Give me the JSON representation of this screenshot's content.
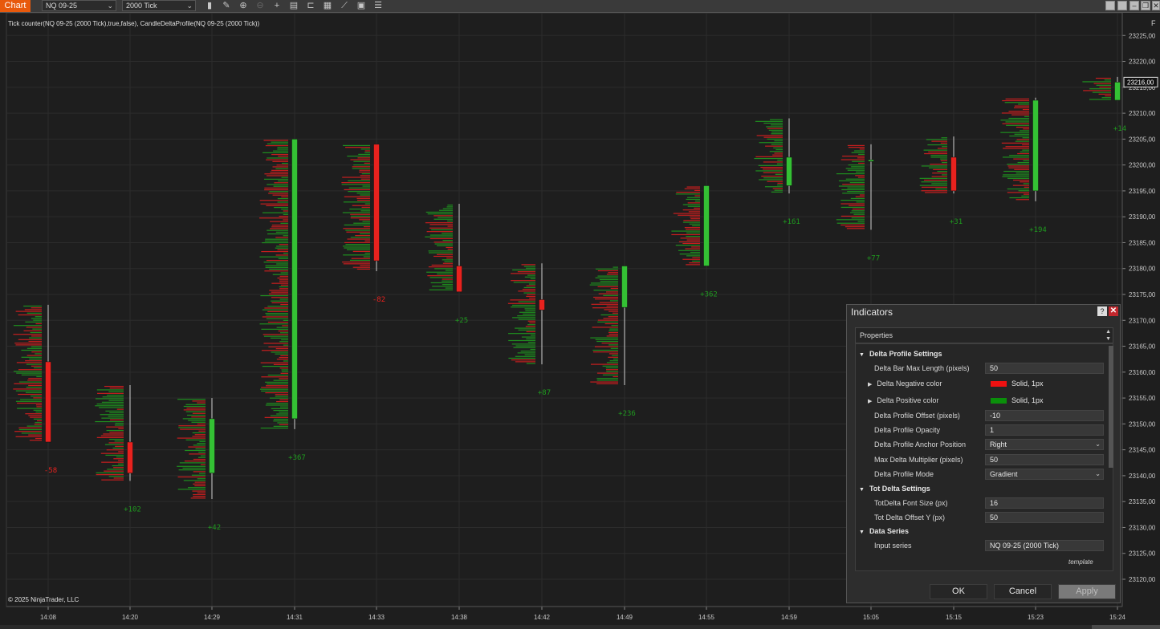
{
  "toolbar": {
    "tab_label": "Chart",
    "instrument": "NQ 09-25",
    "period": "2000 Tick",
    "icons": [
      "bar-chart-icon",
      "draw-pencil-icon",
      "zoom-in-icon",
      "zoom-out-icon",
      "crosshair-icon",
      "properties-icon",
      "template-icon",
      "indicators-icon",
      "strategy-icon",
      "calculator-icon",
      "list-icon"
    ]
  },
  "chart": {
    "indicator_label": "Tick counter(NQ 09-25 (2000 Tick),true,false), CandleDeltaProfile(NQ 09-25 (2000 Tick))",
    "copyright": "© 2025 NinjaTrader, LLC",
    "axis_marker": "F",
    "last_price": "23216,00",
    "colors": {
      "up": "#34c134",
      "down": "#e8221e",
      "pos_profile": "#1f9a1f",
      "neg_profile": "#d81e1e",
      "background": "#1e1e1e",
      "grid": "#2c2c2c"
    }
  },
  "chart_data": {
    "type": "candlestick",
    "y_ticks": [
      "23225,00",
      "23220,00",
      "23215,00",
      "23210,00",
      "23205,00",
      "23200,00",
      "23195,00",
      "23190,00",
      "23185,00",
      "23180,00",
      "23175,00",
      "23170,00",
      "23165,00",
      "23160,00",
      "23155,00",
      "23150,00",
      "23145,00",
      "23140,00",
      "23135,00",
      "23130,00",
      "23125,00",
      "23120,00"
    ],
    "ylim": [
      23118,
      23228
    ],
    "x_ticks": [
      "14:08",
      "14:20",
      "14:29",
      "14:31",
      "14:33",
      "14:38",
      "14:42",
      "14:49",
      "14:55",
      "14:59",
      "15:05",
      "15:15",
      "15:23",
      "15:24"
    ],
    "candles": [
      {
        "time": "14:08",
        "open": 23162,
        "high": 23173,
        "low": 23146.5,
        "close": 23146.5,
        "delta": "-58"
      },
      {
        "time": "14:20",
        "open": 23146.5,
        "high": 23157.5,
        "low": 23139,
        "close": 23140.5,
        "delta": "+102"
      },
      {
        "time": "14:29",
        "open": 23140.5,
        "high": 23155,
        "low": 23135.5,
        "close": 23151,
        "delta": "+42"
      },
      {
        "time": "14:31",
        "open": 23151,
        "high": 23205,
        "low": 23149,
        "close": 23205,
        "delta": "+367"
      },
      {
        "time": "14:33",
        "open": 23204,
        "high": 23204,
        "low": 23179.5,
        "close": 23181.5,
        "delta": "-82"
      },
      {
        "time": "14:38",
        "open": 23180.5,
        "high": 23192.5,
        "low": 23175.5,
        "close": 23175.5,
        "delta": "+25"
      },
      {
        "time": "14:42",
        "open": 23174,
        "high": 23181,
        "low": 23161.5,
        "close": 23172,
        "delta": "+87"
      },
      {
        "time": "14:49",
        "open": 23172.5,
        "high": 23180.5,
        "low": 23157.5,
        "close": 23180.5,
        "delta": "+236"
      },
      {
        "time": "14:55",
        "open": 23180.5,
        "high": 23196,
        "low": 23180.5,
        "close": 23196,
        "delta": "+362"
      },
      {
        "time": "14:59",
        "open": 23196,
        "high": 23209,
        "low": 23194.5,
        "close": 23201.5,
        "delta": "+161"
      },
      {
        "time": "15:05",
        "open": 23201,
        "high": 23204,
        "low": 23187.5,
        "close": 23201,
        "delta": "+77"
      },
      {
        "time": "15:15",
        "open": 23201.5,
        "high": 23205.5,
        "low": 23194.5,
        "close": 23195,
        "delta": "+31"
      },
      {
        "time": "15:23",
        "open": 23195,
        "high": 23213,
        "low": 23193,
        "close": 23212.5,
        "delta": "+194"
      },
      {
        "time": "15:24",
        "open": 23212.5,
        "high": 23217,
        "low": 23212.5,
        "close": 23216,
        "delta": "+14"
      }
    ]
  },
  "dialog": {
    "title": "Indicators",
    "help": "?",
    "close": "✕",
    "properties_header": "Properties",
    "sections": {
      "delta_profile": "Delta Profile Settings",
      "tot_delta": "Tot Delta Settings",
      "data_series": "Data Series"
    },
    "props": {
      "bar_max_length_label": "Delta Bar Max Length (pixels)",
      "bar_max_length": "50",
      "neg_color_label": "Delta Negative color",
      "neg_color": "Solid, 1px",
      "neg_swatch": "#ee1111",
      "pos_color_label": "Delta Positive color",
      "pos_color": "Solid, 1px",
      "pos_swatch": "#0a8f0a",
      "offset_label": "Delta Profile Offset (pixels)",
      "offset": "-10",
      "opacity_label": "Delta Profile Opacity",
      "opacity": "1",
      "anchor_label": "Delta Profile Anchor Position",
      "anchor": "Right",
      "max_mult_label": "Max Delta Multiplier (pixels)",
      "max_mult": "50",
      "mode_label": "Delta Profile Mode",
      "mode": "Gradient",
      "font_size_label": "TotDelta Font Size (px)",
      "font_size": "16",
      "offset_y_label": "Tot Delta Offset Y (px)",
      "offset_y": "50",
      "input_series_label": "Input series",
      "input_series": "NQ 09-25 (2000 Tick)"
    },
    "template": "template",
    "ok": "OK",
    "cancel": "Cancel",
    "apply": "Apply"
  }
}
